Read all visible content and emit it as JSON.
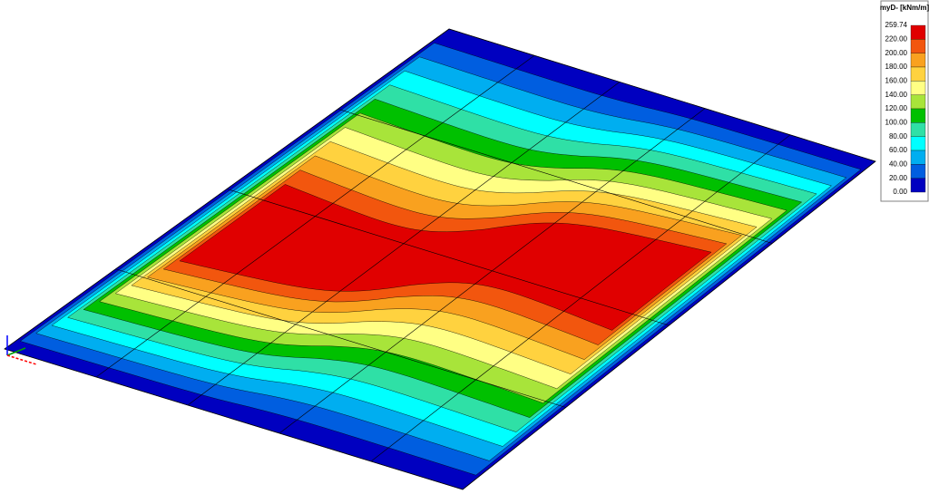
{
  "legend": {
    "title": "myD- [kNm/m]",
    "labels": [
      "259.74",
      "220.00",
      "200.00",
      "180.00",
      "160.00",
      "140.00",
      "120.00",
      "100.00",
      "80.00",
      "60.00",
      "40.00",
      "20.00",
      "0.00"
    ],
    "colors": [
      "#e00000",
      "#f2560e",
      "#f9a11f",
      "#ffd23f",
      "#ffff84",
      "#a8e43a",
      "#00c000",
      "#2fe0a6",
      "#00ffff",
      "#00aef0",
      "#005ee0",
      "#0000c0"
    ]
  }
}
